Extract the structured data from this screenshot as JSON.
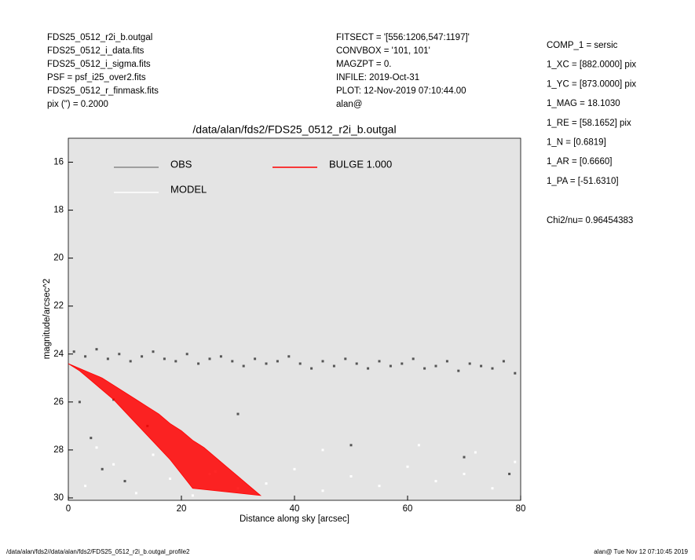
{
  "header": {
    "left": [
      "FDS25_0512_r2i_b.outgal",
      "FDS25_0512_i_data.fits",
      "FDS25_0512_i_sigma.fits",
      "PSF     = psf_i25_over2.fits",
      "FDS25_0512_r_finmask.fits",
      "pix (\") =  0.2000"
    ],
    "middle": [
      "FITSECT = '[556:1206,547:1197]'",
      "CONVBOX = '101, 101'",
      "MAGZPT  =                 0.",
      "INFILE: 2019-Oct-31",
      "PLOT: 12-Nov-2019 07:10:44.00",
      "alan@"
    ],
    "right": [
      "COMP_1  = sersic",
      "1_XC    = [882.0000] pix",
      "1_YC    = [873.0000] pix",
      "1_MAG   = 18.1030",
      "1_RE    = [58.1652] pix",
      "1_N     = [0.6819]",
      "1_AR    = [0.6660]",
      "1_PA    = [-51.6310]"
    ],
    "chi2": "Chi2/nu=     0.96454383"
  },
  "footer": {
    "left": "/data/alan/fds2//data/alan/fds2/FDS25_0512_r2i_b.outgal_profile2",
    "right": "alan@  Tue Nov 12 07:10:45 2019"
  },
  "chart_data": {
    "type": "scatter",
    "title": "/data/alan/fds2/FDS25_0512_r2i_b.outgal",
    "x_label": "Distance along sky [arcsec]",
    "y_label": "magnitude/arcsec^2",
    "xlim": [
      0,
      80
    ],
    "ylim": [
      15,
      30.1
    ],
    "y_inverted": true,
    "xticks": [
      0,
      20,
      40,
      60,
      80
    ],
    "yticks": [
      16,
      18,
      20,
      22,
      24,
      26,
      28,
      30
    ],
    "background": "#e4e4e4",
    "series": [
      {
        "name": "OBS",
        "color": "#555555",
        "legend_color": "#888888",
        "x": [
          1,
          3,
          5,
          7,
          9,
          11,
          13,
          15,
          17,
          19,
          21,
          23,
          25,
          27,
          29,
          31,
          33,
          35,
          37,
          39,
          41,
          43,
          45,
          47,
          49,
          51,
          53,
          55,
          57,
          59,
          61,
          63,
          65,
          67,
          69,
          71,
          73,
          75,
          77,
          79,
          2,
          4,
          6,
          10,
          14,
          30,
          50,
          70,
          78,
          8
        ],
        "values": [
          23.9,
          24.1,
          23.8,
          24.2,
          24.0,
          24.3,
          24.1,
          23.9,
          24.2,
          24.3,
          24.0,
          24.4,
          24.2,
          24.1,
          24.3,
          24.5,
          24.2,
          24.4,
          24.3,
          24.1,
          24.4,
          24.6,
          24.3,
          24.5,
          24.2,
          24.4,
          24.6,
          24.3,
          24.5,
          24.4,
          24.2,
          24.6,
          24.5,
          24.3,
          24.7,
          24.4,
          24.5,
          24.6,
          24.3,
          24.8,
          26.0,
          27.5,
          28.8,
          29.3,
          27.0,
          26.5,
          27.8,
          28.3,
          29.0,
          25.9
        ]
      },
      {
        "name": "MODEL",
        "color": "#ffffff",
        "legend_color": "#ffffff",
        "x": [
          3,
          8,
          12,
          18,
          22,
          26,
          30,
          35,
          40,
          45,
          50,
          55,
          60,
          65,
          70,
          75,
          79,
          5,
          15,
          25,
          45,
          62,
          72
        ],
        "values": [
          29.5,
          28.6,
          29.8,
          29.2,
          29.9,
          28.9,
          29.6,
          29.4,
          28.8,
          29.7,
          29.1,
          29.5,
          28.7,
          29.3,
          29.0,
          29.6,
          28.5,
          27.9,
          28.2,
          29.0,
          28.0,
          27.8,
          28.1
        ]
      },
      {
        "name": "BULGE  1.000",
        "color": "#ff0000",
        "legend_color": "#ff0000",
        "area": true,
        "x": [
          0,
          2,
          4,
          6,
          8,
          10,
          12,
          14,
          16,
          18,
          20,
          22,
          24,
          26,
          28,
          30,
          32,
          34,
          22,
          20,
          18,
          16,
          14,
          12,
          10,
          8,
          6,
          4,
          2
        ],
        "values": [
          24.4,
          24.6,
          24.8,
          25.0,
          25.3,
          25.6,
          25.9,
          26.2,
          26.5,
          26.9,
          27.2,
          27.6,
          27.9,
          28.3,
          28.7,
          29.1,
          29.5,
          29.9,
          29.6,
          29.0,
          28.4,
          27.9,
          27.4,
          26.9,
          26.4,
          25.9,
          25.5,
          25.1,
          24.7
        ]
      }
    ]
  }
}
